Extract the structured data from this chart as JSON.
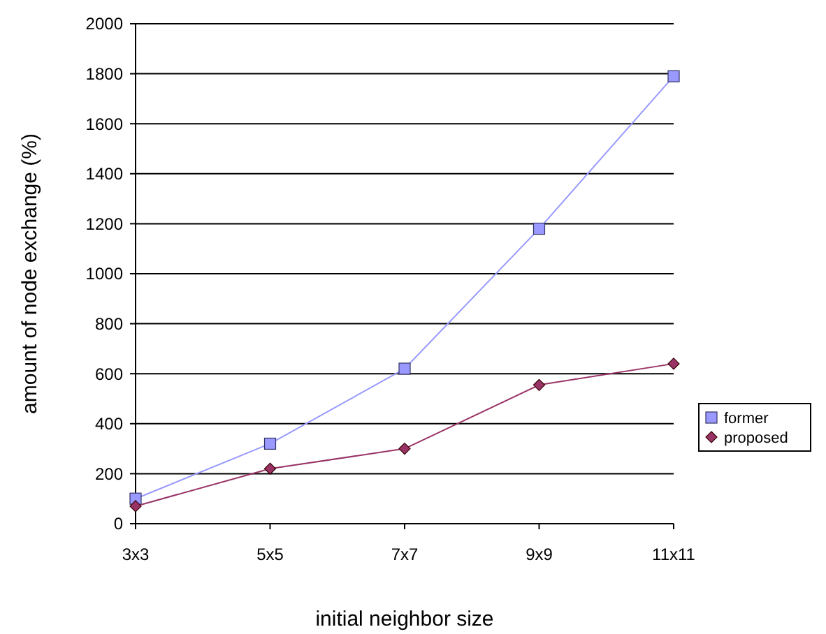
{
  "chart_data": {
    "type": "line",
    "xlabel": "initial neighbor size",
    "ylabel": "amount of node exchange (%)",
    "categories": [
      "3x3",
      "5x5",
      "7x7",
      "9x9",
      "11x11"
    ],
    "series": [
      {
        "name": "former",
        "color": "#9999ff",
        "values": [
          100,
          320,
          620,
          1180,
          1790
        ],
        "marker": "square"
      },
      {
        "name": "proposed",
        "color": "#993366",
        "values": [
          70,
          220,
          300,
          555,
          640
        ],
        "marker": "diamond"
      }
    ],
    "ylim": [
      0,
      2000
    ],
    "yticks": [
      0,
      200,
      400,
      600,
      800,
      1000,
      1200,
      1400,
      1600,
      1800,
      2000
    ],
    "grid": "y",
    "legend": "right"
  }
}
